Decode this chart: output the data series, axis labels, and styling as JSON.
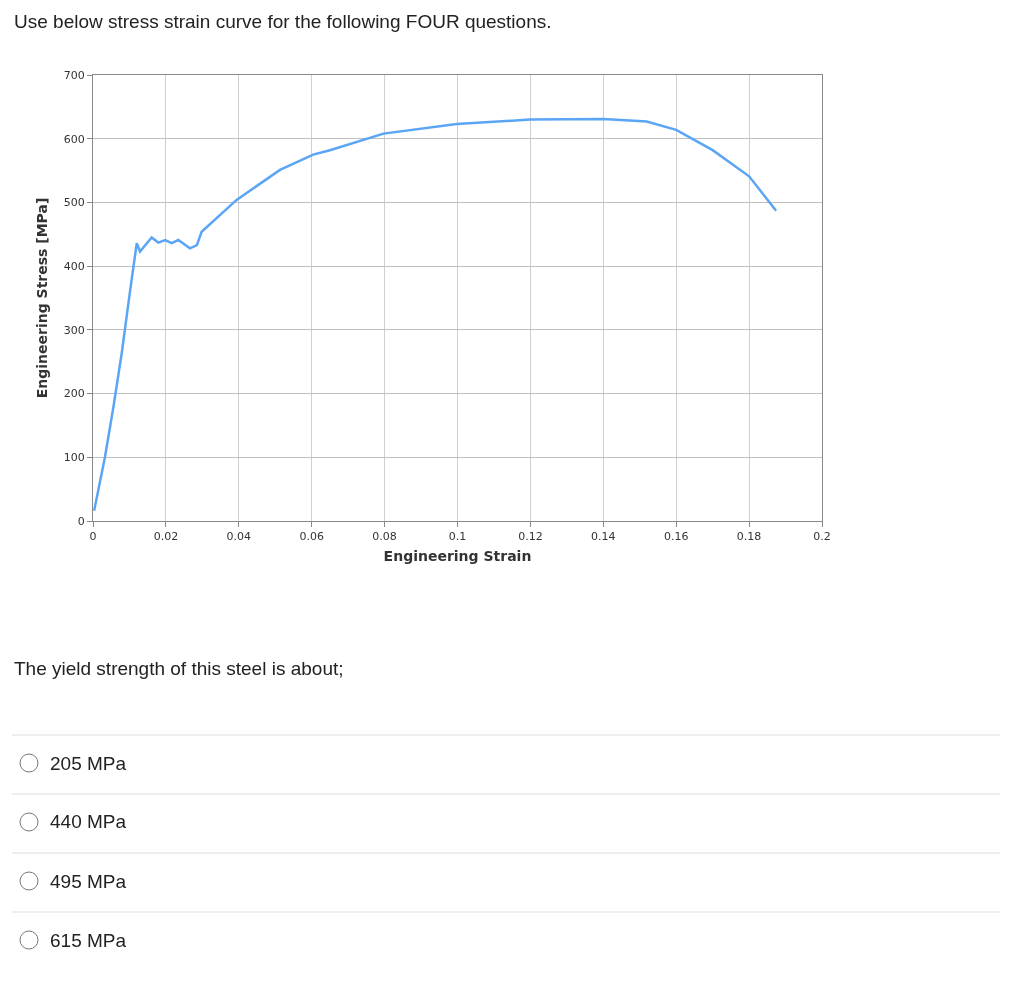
{
  "chart_data": {
    "type": "line",
    "title": "Use below stress strain curve for the following FOUR questions.",
    "xlabel": "Engineering Strain",
    "ylabel": "Engineering Stress [MPa]",
    "series": [
      {
        "color": "#5aa5f5",
        "x": [
          0.0003,
          0.0033,
          0.0056,
          0.0079,
          0.0101,
          0.012,
          0.0129,
          0.0161,
          0.0179,
          0.0198,
          0.0216,
          0.0234,
          0.0266,
          0.0285,
          0.0298,
          0.0394,
          0.0513,
          0.0604,
          0.065,
          0.0797,
          0.0998,
          0.12,
          0.14,
          0.1519,
          0.16,
          0.17,
          0.18,
          0.1874
        ],
        "values": [
          16,
          101,
          179,
          264,
          358,
          436,
          423,
          445,
          437,
          441,
          436,
          441,
          428,
          433,
          454,
          504,
          551,
          575,
          582,
          608,
          623,
          630,
          631,
          627,
          614,
          582,
          541,
          487
        ]
      }
    ],
    "xlim": [
      0,
      0.2
    ],
    "xticks": [
      0,
      0.02,
      0.04,
      0.06,
      0.08,
      0.1,
      0.12,
      0.14,
      0.16,
      0.18,
      0.2
    ],
    "ylim": [
      0,
      700
    ],
    "yticks": [
      0,
      100,
      200,
      300,
      400,
      500,
      600,
      700
    ],
    "grid": true,
    "marker": "none",
    "line_style": "solid",
    "annotations": [
      "The yield strength of this steel is about;",
      "205 MPa",
      "440 MPa",
      "495 MPa",
      "615 MPa"
    ]
  }
}
